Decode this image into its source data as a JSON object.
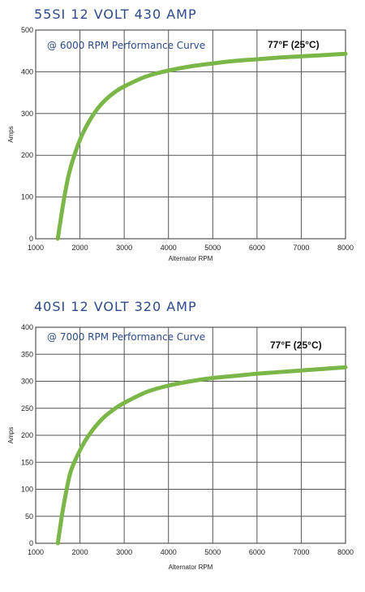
{
  "chart_data": [
    {
      "type": "line",
      "title": "55SI 12 VOLT 430 AMP",
      "subtitle": "@ 6000 RPM Performance Curve",
      "annotation": "77°F (25°C)",
      "xlabel": "Alternator RPM",
      "ylabel": "Amps",
      "xlim": [
        1000,
        8000
      ],
      "ylim": [
        0,
        500
      ],
      "xticks": [
        1000,
        2000,
        3000,
        4000,
        5000,
        6000,
        7000,
        8000
      ],
      "yticks": [
        0,
        100,
        200,
        300,
        400,
        500
      ],
      "grid": true,
      "line_color": "#7ab648",
      "series": [
        {
          "x": [
            1500,
            1600,
            1700,
            1800,
            2000,
            2200,
            2400,
            2600,
            2800,
            3000,
            3500,
            4000,
            4500,
            5000,
            5500,
            6000,
            6500,
            7000,
            7500,
            8000
          ],
          "values": [
            0,
            70,
            130,
            175,
            237,
            280,
            312,
            335,
            352,
            365,
            389,
            403,
            413,
            420,
            426,
            430,
            434,
            437,
            440,
            443
          ]
        }
      ]
    },
    {
      "type": "line",
      "title": "40SI 12 VOLT 320 AMP",
      "subtitle": "@ 7000 RPM Performance Curve",
      "annotation": "77°F (25°C)",
      "xlabel": "Alternator RPM",
      "ylabel": "Amps",
      "xlim": [
        1000,
        8000
      ],
      "ylim": [
        0,
        400
      ],
      "xticks": [
        1000,
        2000,
        3000,
        4000,
        5000,
        6000,
        7000,
        8000
      ],
      "yticks": [
        0,
        50,
        100,
        150,
        200,
        250,
        300,
        350,
        400
      ],
      "grid": true,
      "line_color": "#7ab648",
      "series": [
        {
          "x": [
            1500,
            1600,
            1700,
            1800,
            2000,
            2200,
            2500,
            2800,
            3000,
            3500,
            4000,
            4500,
            5000,
            5500,
            6000,
            6500,
            7000,
            7500,
            8000
          ],
          "values": [
            0,
            55,
            100,
            135,
            172,
            200,
            230,
            250,
            260,
            280,
            292,
            300,
            306,
            310,
            314,
            317,
            320,
            323,
            326
          ]
        }
      ]
    }
  ]
}
